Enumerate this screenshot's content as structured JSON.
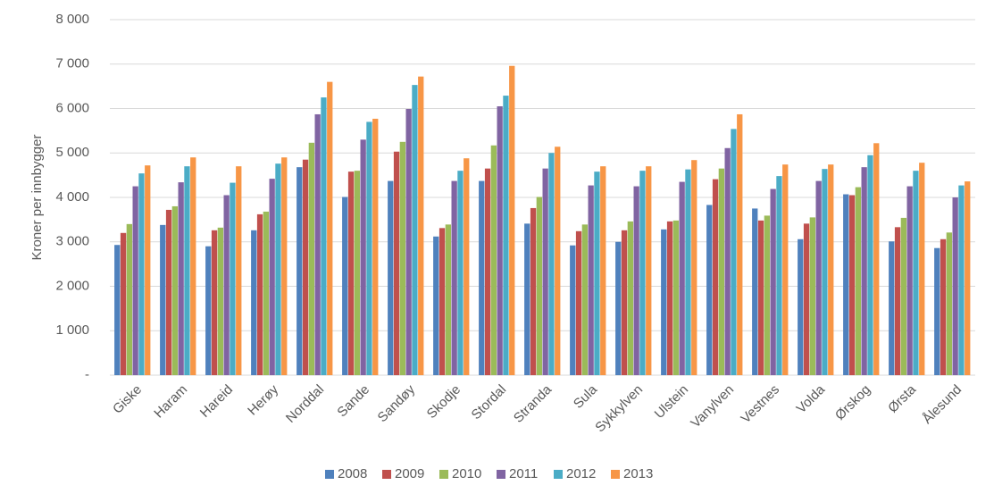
{
  "chart_data": {
    "type": "bar",
    "y_label": "Kroner per innbygger",
    "categories": [
      "Giske",
      "Haram",
      "Hareid",
      "Herøy",
      "Norddal",
      "Sande",
      "Sandøy",
      "Skodje",
      "Stordal",
      "Stranda",
      "Sula",
      "Sykkylven",
      "Ulstein",
      "Vanylven",
      "Vestnes",
      "Volda",
      "Ørskog",
      "Ørsta",
      "Ålesund"
    ],
    "series": [
      {
        "name": "2008",
        "color": "#4f81bd",
        "values": [
          2930,
          3380,
          2900,
          3260,
          4680,
          4010,
          4370,
          3120,
          4370,
          3410,
          2920,
          3000,
          3280,
          3830,
          3750,
          3060,
          4070,
          3010,
          2860
        ]
      },
      {
        "name": "2009",
        "color": "#c0504d",
        "values": [
          3200,
          3720,
          3260,
          3620,
          4850,
          4580,
          5030,
          3310,
          4650,
          3760,
          3240,
          3260,
          3460,
          4410,
          3480,
          3410,
          4050,
          3330,
          3060
        ]
      },
      {
        "name": "2010",
        "color": "#9bbb59",
        "values": [
          3400,
          3800,
          3320,
          3680,
          5230,
          4600,
          5250,
          3390,
          5170,
          4010,
          3390,
          3460,
          3480,
          4650,
          3590,
          3550,
          4230,
          3540,
          3210
        ]
      },
      {
        "name": "2011",
        "color": "#8064a2",
        "values": [
          4250,
          4340,
          4050,
          4420,
          5870,
          5300,
          5990,
          4370,
          6050,
          4650,
          4270,
          4250,
          4350,
          5110,
          4190,
          4370,
          4680,
          4250,
          4000
        ]
      },
      {
        "name": "2012",
        "color": "#4bacc6",
        "values": [
          4540,
          4700,
          4330,
          4760,
          6250,
          5700,
          6530,
          4600,
          6290,
          5000,
          4580,
          4600,
          4630,
          5540,
          4480,
          4640,
          4950,
          4600,
          4270
        ]
      },
      {
        "name": "2013",
        "color": "#f79646",
        "values": [
          4720,
          4900,
          4700,
          4900,
          6600,
          5770,
          6720,
          4880,
          6960,
          5140,
          4700,
          4700,
          4840,
          5870,
          4740,
          4740,
          5220,
          4780,
          4360
        ]
      }
    ],
    "ylim": [
      0,
      8000
    ],
    "yticks": [
      {
        "value": 0,
        "label": "-"
      },
      {
        "value": 1000,
        "label": "1 000"
      },
      {
        "value": 2000,
        "label": "2 000"
      },
      {
        "value": 3000,
        "label": "3 000"
      },
      {
        "value": 4000,
        "label": "4 000"
      },
      {
        "value": 5000,
        "label": "5 000"
      },
      {
        "value": 6000,
        "label": "6 000"
      },
      {
        "value": 7000,
        "label": "7 000"
      },
      {
        "value": 8000,
        "label": "8 000"
      }
    ],
    "grid": true,
    "legend_position": "bottom"
  }
}
